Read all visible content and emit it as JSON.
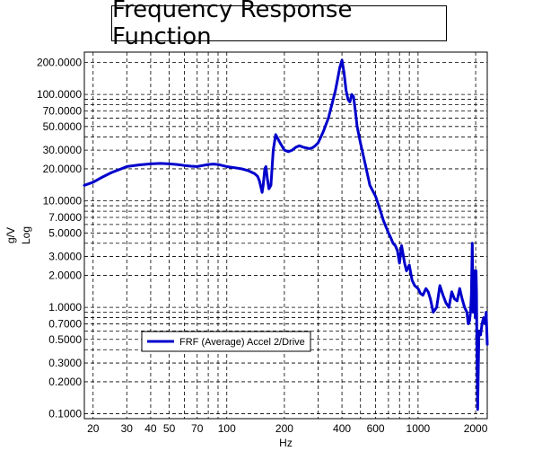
{
  "chart_data": {
    "type": "line",
    "title": "Frequency Response Function",
    "xlabel": "Hz",
    "ylabel": "g/V",
    "ylabel_scale": "Log",
    "x_scale": "log",
    "y_scale": "log",
    "xlim": [
      18,
      2300
    ],
    "ylim": [
      0.09,
      250
    ],
    "grid": true,
    "legend": "bottom-left",
    "x_ticks": [
      {
        "value": 20,
        "label": "20"
      },
      {
        "value": 30,
        "label": "30"
      },
      {
        "value": 40,
        "label": "40"
      },
      {
        "value": 50,
        "label": "50"
      },
      {
        "value": 70,
        "label": "70"
      },
      {
        "value": 100,
        "label": "100"
      },
      {
        "value": 200,
        "label": "200"
      },
      {
        "value": 400,
        "label": "400"
      },
      {
        "value": 600,
        "label": "600"
      },
      {
        "value": 1000,
        "label": "1000"
      },
      {
        "value": 2000,
        "label": "2000"
      }
    ],
    "y_ticks": [
      {
        "value": 200,
        "label": "200.0000"
      },
      {
        "value": 100,
        "label": "100.0000"
      },
      {
        "value": 70,
        "label": "70.0000"
      },
      {
        "value": 50,
        "label": "50.0000"
      },
      {
        "value": 30,
        "label": "30.0000"
      },
      {
        "value": 20,
        "label": "20.0000"
      },
      {
        "value": 10,
        "label": "10.0000"
      },
      {
        "value": 7,
        "label": "7.0000"
      },
      {
        "value": 5,
        "label": "5.0000"
      },
      {
        "value": 3,
        "label": "3.0000"
      },
      {
        "value": 2,
        "label": "2.0000"
      },
      {
        "value": 1,
        "label": "1.0000"
      },
      {
        "value": 0.7,
        "label": "0.7000"
      },
      {
        "value": 0.5,
        "label": "0.5000"
      },
      {
        "value": 0.3,
        "label": "0.3000"
      },
      {
        "value": 0.2,
        "label": "0.2000"
      },
      {
        "value": 0.1,
        "label": "0.1000"
      }
    ],
    "x_grid_lines": [
      20,
      30,
      40,
      50,
      60,
      70,
      80,
      90,
      100,
      200,
      300,
      400,
      500,
      600,
      700,
      800,
      900,
      1000,
      2000
    ],
    "y_grid_lines": [
      200,
      100,
      90,
      80,
      70,
      60,
      50,
      40,
      30,
      20,
      10,
      9,
      8,
      7,
      6,
      5,
      4,
      3,
      2,
      1,
      0.9,
      0.8,
      0.7,
      0.6,
      0.5,
      0.4,
      0.3,
      0.2,
      0.1
    ],
    "series": [
      {
        "name": "FRF (Average) Accel 2/Drive",
        "color": "#0000CC",
        "x": [
          18,
          20,
          22,
          25,
          28,
          30,
          35,
          40,
          45,
          50,
          55,
          60,
          65,
          70,
          75,
          80,
          85,
          90,
          100,
          110,
          120,
          130,
          140,
          145,
          148,
          150,
          153,
          155,
          158,
          160,
          163,
          166,
          170,
          175,
          180,
          190,
          200,
          210,
          220,
          230,
          240,
          250,
          260,
          270,
          280,
          290,
          300,
          320,
          340,
          360,
          370,
          380,
          390,
          400,
          410,
          420,
          430,
          440,
          450,
          460,
          470,
          480,
          500,
          530,
          560,
          600,
          630,
          660,
          700,
          720,
          740,
          760,
          780,
          800,
          820,
          850,
          870,
          900,
          930,
          960,
          1000,
          1030,
          1060,
          1080,
          1100,
          1130,
          1160,
          1200,
          1250,
          1300,
          1350,
          1400,
          1450,
          1500,
          1550,
          1600,
          1650,
          1700,
          1750,
          1800,
          1830,
          1860,
          1880,
          1900,
          1920,
          1940,
          1960,
          1975,
          1990,
          2000,
          2010,
          2020,
          2030,
          2040,
          2050,
          2080,
          2120,
          2160,
          2200,
          2240,
          2270,
          2300
        ],
        "y": [
          14,
          15,
          16.5,
          18.5,
          20,
          21,
          21.8,
          22.3,
          22.5,
          22.3,
          22,
          21.5,
          21.2,
          21,
          21.5,
          22,
          22.2,
          22,
          21,
          20.5,
          20,
          19.2,
          18,
          17,
          15.5,
          14,
          12,
          14,
          20,
          21,
          16,
          13,
          14,
          30,
          42,
          35,
          30,
          29,
          30,
          32,
          33,
          32,
          31.5,
          31,
          31.5,
          33,
          35,
          45,
          60,
          90,
          110,
          140,
          180,
          210,
          160,
          110,
          90,
          85,
          100,
          95,
          70,
          50,
          35,
          22,
          14,
          11,
          8.5,
          6.5,
          5,
          4.5,
          4,
          3.8,
          3.4,
          2.6,
          3.8,
          2.6,
          2.2,
          2.5,
          1.8,
          1.6,
          1.5,
          1.35,
          1.3,
          1.4,
          1.5,
          1.4,
          1.2,
          0.9,
          1.0,
          1.6,
          1.3,
          1.1,
          1.0,
          1.4,
          1.2,
          1.15,
          1.5,
          1.2,
          1.0,
          0.9,
          0.7,
          0.75,
          0.9,
          1.3,
          4.0,
          0.9,
          1.8,
          2.2,
          0.8,
          1.1,
          2.2,
          1.4,
          0.5,
          0.2,
          0.11,
          0.6,
          0.55,
          0.7,
          0.8,
          0.7,
          0.9,
          0.45
        ]
      }
    ]
  }
}
